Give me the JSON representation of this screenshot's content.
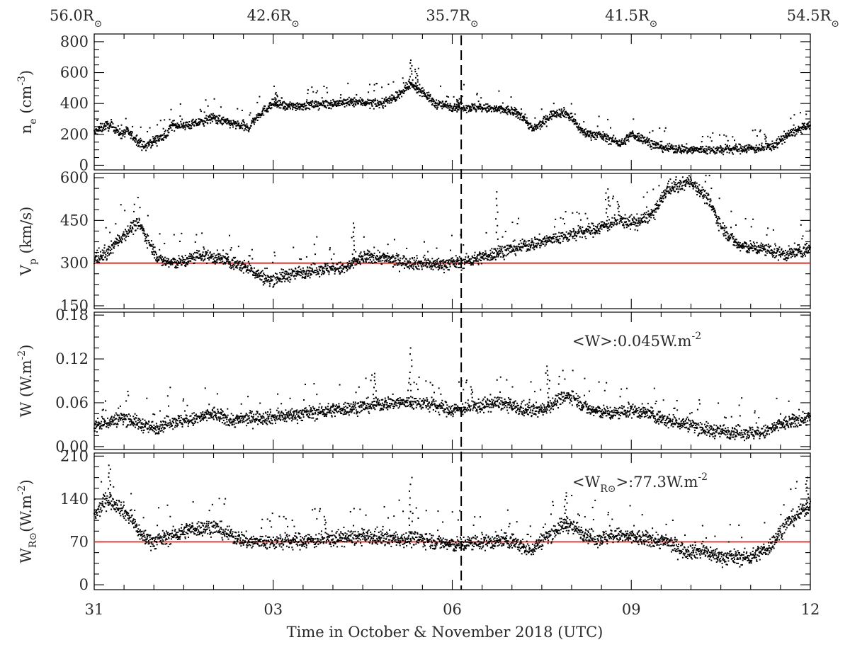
{
  "chart_data": {
    "type": "scatter",
    "xlabel": "Time in October & November 2018 (UTC)",
    "x_unit": "days since Oct 31 00:00 UTC",
    "x_ticks": [
      {
        "value": 0,
        "label": "31"
      },
      {
        "value": 3,
        "label": "03"
      },
      {
        "value": 6,
        "label": "06"
      },
      {
        "value": 9,
        "label": "09"
      },
      {
        "value": 12,
        "label": "12"
      }
    ],
    "xlim": [
      0,
      12
    ],
    "top_axis": {
      "ticks": [
        {
          "value": 0,
          "label": "56.0R"
        },
        {
          "value": 3,
          "label": "42.6R"
        },
        {
          "value": 6,
          "label": "35.7R"
        },
        {
          "value": 9,
          "label": "41.5R"
        },
        {
          "value": 12,
          "label": "54.5R"
        }
      ],
      "sun_symbol": "⊙"
    },
    "perihelion_marker_x": 6.15,
    "panels": [
      {
        "id": "ne",
        "ylabel": "n",
        "ylabel_sub": "e",
        "ylabel_unit": " (cm",
        "ylabel_exp": "-3",
        "ylabel_close": ")",
        "ylim": [
          -30,
          850
        ],
        "yticks": [
          {
            "v": 0,
            "l": "0"
          },
          {
            "v": 200,
            "l": "200"
          },
          {
            "v": 400,
            "l": "400"
          },
          {
            "v": 600,
            "l": "600"
          },
          {
            "v": 800,
            "l": "800"
          }
        ],
        "nodes": [
          [
            0,
            210
          ],
          [
            0.2,
            260
          ],
          [
            0.35,
            240
          ],
          [
            0.45,
            200
          ],
          [
            0.55,
            220
          ],
          [
            0.75,
            150
          ],
          [
            0.85,
            120
          ],
          [
            1.0,
            160
          ],
          [
            1.2,
            190
          ],
          [
            1.3,
            260
          ],
          [
            1.6,
            260
          ],
          [
            1.8,
            280
          ],
          [
            2.0,
            310
          ],
          [
            2.2,
            280
          ],
          [
            2.4,
            260
          ],
          [
            2.6,
            240
          ],
          [
            2.65,
            280
          ],
          [
            2.8,
            340
          ],
          [
            3.0,
            400
          ],
          [
            3.2,
            380
          ],
          [
            3.6,
            390
          ],
          [
            4.0,
            400
          ],
          [
            4.4,
            410
          ],
          [
            4.8,
            400
          ],
          [
            5.1,
            450
          ],
          [
            5.3,
            520
          ],
          [
            5.5,
            480
          ],
          [
            5.7,
            400
          ],
          [
            6.0,
            380
          ],
          [
            6.5,
            370
          ],
          [
            6.8,
            360
          ],
          [
            7.0,
            350
          ],
          [
            7.2,
            310
          ],
          [
            7.35,
            230
          ],
          [
            7.5,
            270
          ],
          [
            7.7,
            340
          ],
          [
            7.9,
            340
          ],
          [
            8.05,
            280
          ],
          [
            8.2,
            210
          ],
          [
            8.5,
            190
          ],
          [
            8.7,
            160
          ],
          [
            8.85,
            140
          ],
          [
            9.0,
            200
          ],
          [
            9.2,
            170
          ],
          [
            9.4,
            130
          ],
          [
            9.6,
            110
          ],
          [
            10.0,
            100
          ],
          [
            10.5,
            100
          ],
          [
            10.9,
            110
          ],
          [
            11.2,
            110
          ],
          [
            11.4,
            130
          ],
          [
            11.6,
            190
          ],
          [
            11.8,
            230
          ],
          [
            12.0,
            255
          ]
        ],
        "jitter": 28,
        "spikes": [
          [
            5.3,
            680
          ],
          [
            5.4,
            620
          ],
          [
            3.05,
            470
          ],
          [
            6.1,
            430
          ]
        ],
        "ref_line": null,
        "annotation": null
      },
      {
        "id": "vp",
        "ylabel": "V",
        "ylabel_sub": "p",
        "ylabel_unit": " (km/s)",
        "ylabel_exp": "",
        "ylabel_close": "",
        "ylim": [
          140,
          615
        ],
        "yticks": [
          {
            "v": 150,
            "l": "150"
          },
          {
            "v": 300,
            "l": "300"
          },
          {
            "v": 450,
            "l": "450"
          },
          {
            "v": 600,
            "l": "600"
          }
        ],
        "nodes": [
          [
            0,
            315
          ],
          [
            0.2,
            330
          ],
          [
            0.4,
            380
          ],
          [
            0.6,
            420
          ],
          [
            0.75,
            440
          ],
          [
            0.9,
            380
          ],
          [
            1.1,
            310
          ],
          [
            1.3,
            300
          ],
          [
            1.5,
            305
          ],
          [
            1.8,
            330
          ],
          [
            2.2,
            310
          ],
          [
            2.6,
            280
          ],
          [
            2.9,
            240
          ],
          [
            3.1,
            250
          ],
          [
            3.5,
            270
          ],
          [
            3.8,
            280
          ],
          [
            4.2,
            280
          ],
          [
            4.5,
            320
          ],
          [
            4.8,
            320
          ],
          [
            5.0,
            310
          ],
          [
            5.4,
            300
          ],
          [
            5.8,
            295
          ],
          [
            6.2,
            305
          ],
          [
            6.5,
            320
          ],
          [
            6.8,
            340
          ],
          [
            7.2,
            360
          ],
          [
            7.6,
            380
          ],
          [
            8.0,
            400
          ],
          [
            8.4,
            420
          ],
          [
            8.8,
            450
          ],
          [
            9.1,
            440
          ],
          [
            9.4,
            480
          ],
          [
            9.6,
            560
          ],
          [
            9.8,
            570
          ],
          [
            10.0,
            590
          ],
          [
            10.3,
            520
          ],
          [
            10.5,
            430
          ],
          [
            10.8,
            360
          ],
          [
            11.2,
            350
          ],
          [
            11.6,
            330
          ],
          [
            12.0,
            350
          ]
        ],
        "jitter": 22,
        "spikes": [
          [
            6.75,
            550
          ],
          [
            8.6,
            560
          ],
          [
            4.35,
            440
          ]
        ],
        "ref_line": {
          "value": 300,
          "color": "#e8201a"
        },
        "annotation": null
      },
      {
        "id": "w",
        "ylabel": "W",
        "ylabel_sub": "",
        "ylabel_unit": "  (W.m",
        "ylabel_exp": "-2",
        "ylabel_close": ")",
        "ylim": [
          -0.004,
          0.184
        ],
        "yticks": [
          {
            "v": 0,
            "l": "0.00"
          },
          {
            "v": 0.06,
            "l": "0.06"
          },
          {
            "v": 0.12,
            "l": "0.12"
          },
          {
            "v": 0.18,
            "l": "0.18"
          }
        ],
        "nodes": [
          [
            0,
            0.028
          ],
          [
            0.3,
            0.035
          ],
          [
            0.5,
            0.04
          ],
          [
            0.8,
            0.03
          ],
          [
            1.0,
            0.025
          ],
          [
            1.3,
            0.035
          ],
          [
            1.6,
            0.035
          ],
          [
            2.0,
            0.045
          ],
          [
            2.3,
            0.035
          ],
          [
            2.7,
            0.04
          ],
          [
            3.0,
            0.04
          ],
          [
            3.5,
            0.045
          ],
          [
            4.0,
            0.05
          ],
          [
            4.5,
            0.055
          ],
          [
            5.0,
            0.06
          ],
          [
            5.5,
            0.06
          ],
          [
            6.0,
            0.05
          ],
          [
            6.4,
            0.055
          ],
          [
            6.8,
            0.06
          ],
          [
            7.2,
            0.05
          ],
          [
            7.5,
            0.05
          ],
          [
            7.8,
            0.065
          ],
          [
            8.0,
            0.07
          ],
          [
            8.3,
            0.05
          ],
          [
            8.7,
            0.045
          ],
          [
            9.0,
            0.05
          ],
          [
            9.3,
            0.045
          ],
          [
            9.6,
            0.035
          ],
          [
            10.0,
            0.03
          ],
          [
            10.3,
            0.022
          ],
          [
            10.8,
            0.02
          ],
          [
            11.2,
            0.018
          ],
          [
            11.5,
            0.03
          ],
          [
            12.0,
            0.04
          ]
        ],
        "jitter": 0.009,
        "spikes": [
          [
            5.3,
            0.135
          ],
          [
            7.6,
            0.11
          ],
          [
            4.7,
            0.1
          ]
        ],
        "ref_line": null,
        "annotation": {
          "text": "<W>:0.045W.m",
          "exp": "-2",
          "sub": ""
        }
      },
      {
        "id": "wr",
        "ylabel": "W",
        "ylabel_sub": "R⊙",
        "ylabel_unit": "(W.m",
        "ylabel_exp": "-2",
        "ylabel_close": ")",
        "ylim": [
          -8,
          215
        ],
        "yticks": [
          {
            "v": 0,
            "l": "0"
          },
          {
            "v": 70,
            "l": "70"
          },
          {
            "v": 140,
            "l": "140"
          },
          {
            "v": 210,
            "l": "210"
          }
        ],
        "nodes": [
          [
            0,
            110
          ],
          [
            0.2,
            140
          ],
          [
            0.4,
            130
          ],
          [
            0.6,
            110
          ],
          [
            0.8,
            80
          ],
          [
            1.0,
            70
          ],
          [
            1.3,
            80
          ],
          [
            1.6,
            90
          ],
          [
            2.0,
            95
          ],
          [
            2.3,
            80
          ],
          [
            2.6,
            70
          ],
          [
            3.0,
            70
          ],
          [
            3.5,
            72
          ],
          [
            4.0,
            75
          ],
          [
            4.5,
            78
          ],
          [
            5.0,
            75
          ],
          [
            5.5,
            75
          ],
          [
            6.0,
            65
          ],
          [
            6.5,
            70
          ],
          [
            7.0,
            72
          ],
          [
            7.3,
            55
          ],
          [
            7.6,
            80
          ],
          [
            7.9,
            100
          ],
          [
            8.1,
            90
          ],
          [
            8.4,
            75
          ],
          [
            8.8,
            80
          ],
          [
            9.2,
            75
          ],
          [
            9.6,
            70
          ],
          [
            9.9,
            55
          ],
          [
            10.2,
            55
          ],
          [
            10.5,
            45
          ],
          [
            11.0,
            45
          ],
          [
            11.3,
            60
          ],
          [
            11.6,
            100
          ],
          [
            12.0,
            130
          ]
        ],
        "jitter": 12,
        "spikes": [
          [
            0.25,
            195
          ],
          [
            5.3,
            175
          ],
          [
            7.9,
            150
          ],
          [
            11.95,
            175
          ]
        ],
        "ref_line": {
          "value": 70,
          "color": "#e8201a"
        },
        "annotation": {
          "text": ">:77.3W.m",
          "exp": "-2",
          "sub": "R⊙",
          "prefix": "<W"
        }
      }
    ]
  }
}
